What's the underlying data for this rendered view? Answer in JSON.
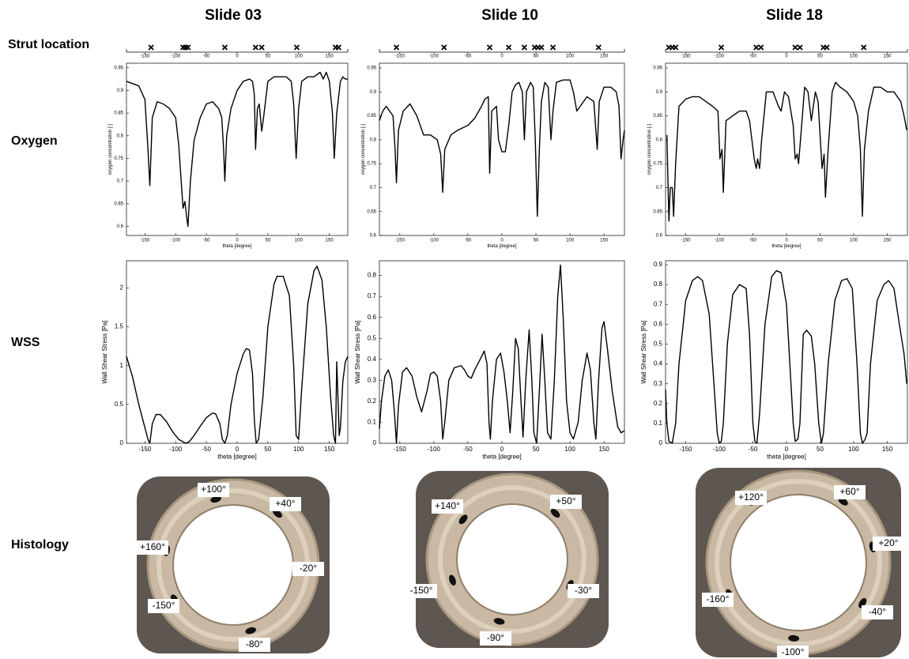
{
  "column_titles": [
    "Slide 03",
    "Slide 10",
    "Slide 18"
  ],
  "row_labels": [
    "Strut location",
    "Oxygen",
    "WSS",
    "Histology"
  ],
  "histology": [
    {
      "labels": [
        "+100°",
        "+40°",
        "+160°",
        "-20°",
        "-150°",
        "-80°"
      ]
    },
    {
      "labels": [
        "+140°",
        "+50°",
        "-150°",
        "-30°",
        "-90°"
      ]
    },
    {
      "labels": [
        "+120°",
        "+60°",
        "+20°",
        "-160°",
        "-40°",
        "-100°"
      ]
    }
  ],
  "chart_data": [
    {
      "type": "strip",
      "values": [
        -140,
        -88,
        -84,
        -80,
        -20,
        30,
        40,
        97,
        160,
        165
      ],
      "color": "#000000",
      "xlim": [
        -180,
        180
      ],
      "xticks": [
        -150,
        -100,
        -50,
        0,
        50,
        100,
        150
      ]
    },
    {
      "type": "strip",
      "values": [
        -155,
        -85,
        -18,
        10,
        33,
        48,
        53,
        58,
        75,
        142
      ],
      "color": "#000000",
      "xlim": [
        -180,
        180
      ],
      "xticks": [
        -150,
        -100,
        -50,
        0,
        50,
        100,
        150
      ]
    },
    {
      "type": "strip",
      "values": [
        -175,
        -170,
        -165,
        -97,
        -45,
        -38,
        13,
        20,
        55,
        60,
        115
      ],
      "color": "#000000",
      "xlim": [
        -180,
        180
      ],
      "xticks": [
        -150,
        -100,
        -50,
        0,
        50,
        100,
        150
      ]
    },
    {
      "type": "line",
      "x_label": "theta [degree]",
      "y_label": "oxygen concentration [-]",
      "color": "#000000",
      "x": [
        -180,
        -170,
        -160,
        -150,
        -145,
        -142,
        -138,
        -130,
        -120,
        -110,
        -100,
        -95,
        -88,
        -85,
        -82,
        -80,
        -76,
        -70,
        -60,
        -50,
        -40,
        -30,
        -25,
        -22,
        -20,
        -17,
        -10,
        0,
        10,
        20,
        25,
        28,
        30,
        33,
        36,
        40,
        43,
        50,
        60,
        70,
        80,
        88,
        92,
        96,
        100,
        105,
        115,
        125,
        135,
        140,
        145,
        150,
        155,
        158,
        162,
        168,
        172,
        176,
        180
      ],
      "values": [
        0.92,
        0.915,
        0.91,
        0.88,
        0.77,
        0.69,
        0.84,
        0.875,
        0.87,
        0.86,
        0.84,
        0.78,
        0.64,
        0.655,
        0.62,
        0.6,
        0.7,
        0.79,
        0.84,
        0.87,
        0.875,
        0.86,
        0.84,
        0.77,
        0.7,
        0.8,
        0.86,
        0.9,
        0.92,
        0.925,
        0.92,
        0.89,
        0.77,
        0.86,
        0.87,
        0.81,
        0.84,
        0.92,
        0.93,
        0.93,
        0.93,
        0.92,
        0.87,
        0.75,
        0.86,
        0.92,
        0.93,
        0.93,
        0.94,
        0.925,
        0.94,
        0.92,
        0.85,
        0.75,
        0.85,
        0.92,
        0.93,
        0.925,
        0.925
      ],
      "xlim": [
        -180,
        180
      ],
      "xticks": [
        -150,
        -100,
        -50,
        0,
        50,
        100,
        150
      ],
      "ylim": [
        0.58,
        0.96
      ],
      "yticks": [
        0.6,
        0.65,
        0.7,
        0.75,
        0.8,
        0.85,
        0.9,
        0.95
      ]
    },
    {
      "type": "line",
      "x_label": "theta [degree]",
      "y_label": "oxygen concentration [-]",
      "color": "#000000",
      "x": [
        -180,
        -175,
        -170,
        -165,
        -160,
        -157,
        -155,
        -152,
        -145,
        -135,
        -125,
        -115,
        -105,
        -95,
        -90,
        -87,
        -84,
        -75,
        -65,
        -50,
        -40,
        -30,
        -25,
        -20,
        -18,
        -15,
        -8,
        -5,
        0,
        5,
        10,
        15,
        20,
        25,
        30,
        33,
        36,
        42,
        46,
        49,
        52,
        55,
        58,
        63,
        68,
        72,
        75,
        80,
        90,
        100,
        105,
        110,
        115,
        125,
        135,
        140,
        143,
        150,
        160,
        168,
        172,
        175,
        178,
        180
      ],
      "values": [
        0.84,
        0.86,
        0.87,
        0.86,
        0.85,
        0.78,
        0.71,
        0.82,
        0.86,
        0.875,
        0.85,
        0.81,
        0.81,
        0.8,
        0.77,
        0.69,
        0.78,
        0.81,
        0.82,
        0.83,
        0.845,
        0.87,
        0.885,
        0.89,
        0.73,
        0.86,
        0.87,
        0.8,
        0.775,
        0.775,
        0.83,
        0.9,
        0.915,
        0.92,
        0.9,
        0.8,
        0.9,
        0.92,
        0.91,
        0.8,
        0.64,
        0.78,
        0.88,
        0.92,
        0.91,
        0.8,
        0.86,
        0.92,
        0.925,
        0.925,
        0.9,
        0.86,
        0.87,
        0.89,
        0.88,
        0.78,
        0.88,
        0.91,
        0.91,
        0.9,
        0.87,
        0.76,
        0.8,
        0.82
      ],
      "xlim": [
        -180,
        180
      ],
      "xticks": [
        -150,
        -100,
        -50,
        0,
        50,
        100,
        150
      ],
      "ylim": [
        0.6,
        0.96
      ],
      "yticks": [
        0.6,
        0.65,
        0.7,
        0.75,
        0.8,
        0.85,
        0.9,
        0.95
      ]
    },
    {
      "type": "line",
      "x_label": "theta [degree]",
      "y_label": "oxygen concentration [-]",
      "color": "#000000",
      "x": [
        -178,
        -175,
        -173,
        -170,
        -168,
        -165,
        -160,
        -150,
        -140,
        -130,
        -120,
        -110,
        -102,
        -99,
        -96,
        -94,
        -90,
        -80,
        -70,
        -60,
        -55,
        -48,
        -45,
        -43,
        -40,
        -37,
        -30,
        -20,
        -12,
        -8,
        -3,
        3,
        10,
        13,
        16,
        18,
        22,
        27,
        32,
        37,
        43,
        47,
        53,
        56,
        58,
        62,
        68,
        73,
        80,
        90,
        100,
        106,
        110,
        113,
        116,
        122,
        130,
        140,
        150,
        160,
        170,
        175,
        179
      ],
      "values": [
        0.81,
        0.63,
        0.7,
        0.7,
        0.64,
        0.75,
        0.87,
        0.885,
        0.89,
        0.89,
        0.88,
        0.87,
        0.86,
        0.76,
        0.78,
        0.69,
        0.84,
        0.85,
        0.86,
        0.86,
        0.84,
        0.76,
        0.74,
        0.76,
        0.74,
        0.8,
        0.9,
        0.9,
        0.87,
        0.86,
        0.9,
        0.89,
        0.83,
        0.76,
        0.77,
        0.75,
        0.82,
        0.91,
        0.9,
        0.84,
        0.9,
        0.88,
        0.74,
        0.77,
        0.68,
        0.78,
        0.9,
        0.92,
        0.91,
        0.9,
        0.88,
        0.85,
        0.78,
        0.64,
        0.78,
        0.86,
        0.91,
        0.91,
        0.9,
        0.9,
        0.88,
        0.85,
        0.82
      ],
      "xlim": [
        -180,
        180
      ],
      "xticks": [
        -150,
        -100,
        -50,
        0,
        50,
        100,
        150
      ],
      "ylim": [
        0.6,
        0.96
      ],
      "yticks": [
        0.6,
        0.65,
        0.7,
        0.75,
        0.8,
        0.85,
        0.9,
        0.95
      ]
    },
    {
      "type": "line",
      "x_label": "theta [degree]",
      "y_label": "Wall Shear Stress [Pa]",
      "color": "#000000",
      "x": [
        -180,
        -170,
        -160,
        -150,
        -145,
        -142,
        -138,
        -132,
        -125,
        -115,
        -105,
        -95,
        -88,
        -84,
        -78,
        -70,
        -60,
        -50,
        -40,
        -35,
        -28,
        -24,
        -20,
        -16,
        -10,
        0,
        10,
        15,
        20,
        25,
        28,
        31,
        35,
        42,
        50,
        60,
        65,
        75,
        85,
        92,
        96,
        100,
        105,
        115,
        125,
        130,
        138,
        145,
        152,
        157,
        160,
        162,
        164,
        166,
        168,
        172,
        176,
        180
      ],
      "values": [
        1.12,
        0.85,
        0.5,
        0.2,
        0.05,
        0,
        0.25,
        0.37,
        0.37,
        0.28,
        0.15,
        0.05,
        0.02,
        0,
        0.02,
        0.1,
        0.22,
        0.33,
        0.39,
        0.38,
        0.25,
        0.05,
        0,
        0.1,
        0.5,
        0.9,
        1.15,
        1.22,
        1.2,
        0.9,
        0.3,
        0,
        0.05,
        0.6,
        1.5,
        2.05,
        2.15,
        2.15,
        1.9,
        1,
        0.1,
        0.05,
        0.7,
        1.8,
        2.22,
        2.28,
        2.1,
        1.5,
        0.6,
        0.1,
        0,
        1.05,
        0.6,
        0.1,
        0.2,
        0.8,
        1.05,
        1.12
      ],
      "xlim": [
        -180,
        180
      ],
      "xticks": [
        -150,
        -100,
        -50,
        0,
        50,
        100,
        150
      ],
      "ylim": [
        0,
        2.35
      ],
      "yticks": [
        0,
        0.5,
        1,
        1.5,
        2
      ]
    },
    {
      "type": "line",
      "x_label": "theta [degree]",
      "y_label": "Wall Shear Stress [Pa]",
      "color": "#000000",
      "x": [
        -180,
        -177,
        -172,
        -167,
        -162,
        -158,
        -155,
        -152,
        -146,
        -140,
        -132,
        -125,
        -118,
        -110,
        -105,
        -100,
        -95,
        -90,
        -87,
        -84,
        -78,
        -70,
        -60,
        -55,
        -50,
        -45,
        -40,
        -32,
        -26,
        -22,
        -19,
        -17,
        -14,
        -8,
        -2,
        3,
        8,
        12,
        16,
        20,
        24,
        28,
        31,
        35,
        40,
        44,
        47,
        51,
        55,
        59,
        63,
        67,
        72,
        77,
        82,
        86,
        90,
        95,
        100,
        105,
        112,
        118,
        125,
        130,
        135,
        138,
        142,
        147,
        150,
        155,
        162,
        170,
        175,
        180
      ],
      "values": [
        0.07,
        0.2,
        0.32,
        0.35,
        0.3,
        0.15,
        0,
        0.18,
        0.34,
        0.36,
        0.32,
        0.22,
        0.15,
        0.25,
        0.33,
        0.34,
        0.32,
        0.2,
        0.02,
        0.1,
        0.3,
        0.36,
        0.37,
        0.35,
        0.32,
        0.31,
        0.35,
        0.4,
        0.44,
        0.38,
        0.1,
        0.02,
        0.2,
        0.4,
        0.43,
        0.34,
        0.2,
        0.05,
        0.25,
        0.5,
        0.45,
        0.2,
        0.03,
        0.3,
        0.54,
        0.3,
        0.05,
        0,
        0.25,
        0.52,
        0.3,
        0.05,
        0.02,
        0.3,
        0.7,
        0.85,
        0.6,
        0.2,
        0.05,
        0.02,
        0.1,
        0.3,
        0.43,
        0.35,
        0.1,
        0.02,
        0.3,
        0.55,
        0.58,
        0.45,
        0.25,
        0.08,
        0.05,
        0.06
      ],
      "xlim": [
        -180,
        180
      ],
      "xticks": [
        -150,
        -100,
        -50,
        0,
        50,
        100,
        150
      ],
      "ylim": [
        0,
        0.87
      ],
      "yticks": [
        0,
        0.1,
        0.2,
        0.3,
        0.4,
        0.5,
        0.6,
        0.7,
        0.8
      ]
    },
    {
      "type": "line",
      "x_label": "theta [degree]",
      "y_label": "Wall Shear Stress [Pa]",
      "color": "#000000",
      "x": [
        -180,
        -178,
        -175,
        -170,
        -165,
        -160,
        -150,
        -140,
        -132,
        -125,
        -115,
        -108,
        -103,
        -100,
        -97,
        -94,
        -88,
        -80,
        -70,
        -60,
        -55,
        -50,
        -47,
        -44,
        -40,
        -32,
        -22,
        -15,
        -8,
        0,
        5,
        10,
        13,
        17,
        20,
        25,
        30,
        37,
        42,
        48,
        52,
        55,
        62,
        72,
        82,
        90,
        98,
        105,
        110,
        113,
        117,
        120,
        125,
        135,
        145,
        152,
        160,
        168,
        175,
        179
      ],
      "values": [
        0.27,
        0.1,
        0.01,
        0,
        0.1,
        0.4,
        0.72,
        0.82,
        0.84,
        0.82,
        0.65,
        0.3,
        0.05,
        0,
        0.01,
        0.1,
        0.5,
        0.75,
        0.8,
        0.78,
        0.55,
        0.1,
        0.01,
        0,
        0.15,
        0.6,
        0.84,
        0.87,
        0.86,
        0.7,
        0.4,
        0.1,
        0.01,
        0.02,
        0.1,
        0.55,
        0.57,
        0.54,
        0.4,
        0.1,
        0,
        0.05,
        0.4,
        0.72,
        0.82,
        0.83,
        0.78,
        0.4,
        0.05,
        0,
        0.02,
        0.05,
        0.4,
        0.72,
        0.8,
        0.82,
        0.78,
        0.6,
        0.45,
        0.3
      ],
      "xlim": [
        -180,
        180
      ],
      "xticks": [
        -150,
        -100,
        -50,
        0,
        50,
        100,
        150
      ],
      "ylim": [
        0,
        0.92
      ],
      "yticks": [
        0,
        0.1,
        0.2,
        0.3,
        0.4,
        0.5,
        0.6,
        0.7,
        0.8,
        0.9
      ]
    }
  ]
}
